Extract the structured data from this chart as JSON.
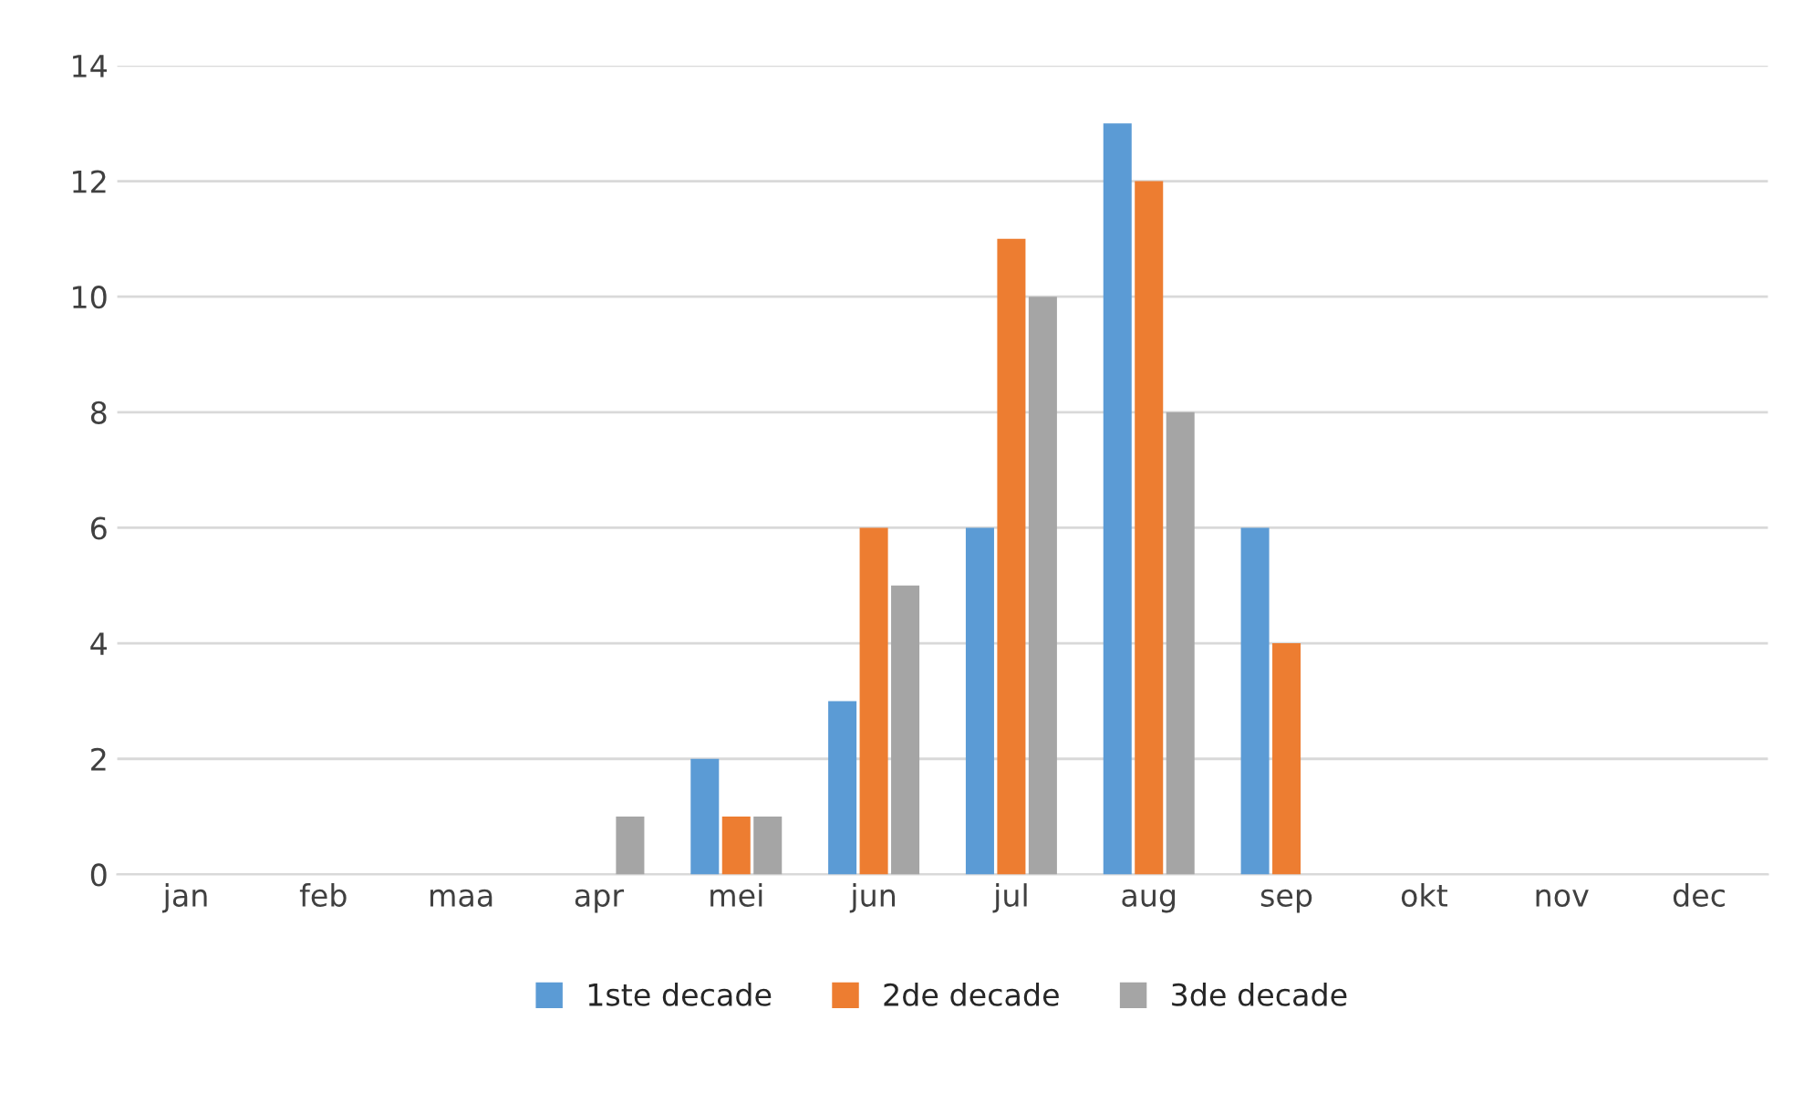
{
  "chart_data": {
    "type": "bar",
    "categories": [
      "jan",
      "feb",
      "maa",
      "apr",
      "mei",
      "jun",
      "jul",
      "aug",
      "sep",
      "okt",
      "nov",
      "dec"
    ],
    "series": [
      {
        "name": "1ste decade",
        "color": "#5b9bd5",
        "values": [
          0,
          0,
          0,
          0,
          2,
          3,
          6,
          13,
          6,
          0,
          0,
          0
        ]
      },
      {
        "name": "2de decade",
        "color": "#ed7d31",
        "values": [
          0,
          0,
          0,
          0,
          1,
          6,
          11,
          12,
          4,
          0,
          0,
          0
        ]
      },
      {
        "name": "3de decade",
        "color": "#a5a5a5",
        "values": [
          0,
          0,
          0,
          1,
          1,
          5,
          10,
          8,
          0,
          0,
          0,
          0
        ]
      }
    ],
    "ylim": [
      0,
      14
    ],
    "yticks": [
      0,
      2,
      4,
      6,
      8,
      10,
      12,
      14
    ],
    "grid": "y",
    "legend": "bottom"
  }
}
